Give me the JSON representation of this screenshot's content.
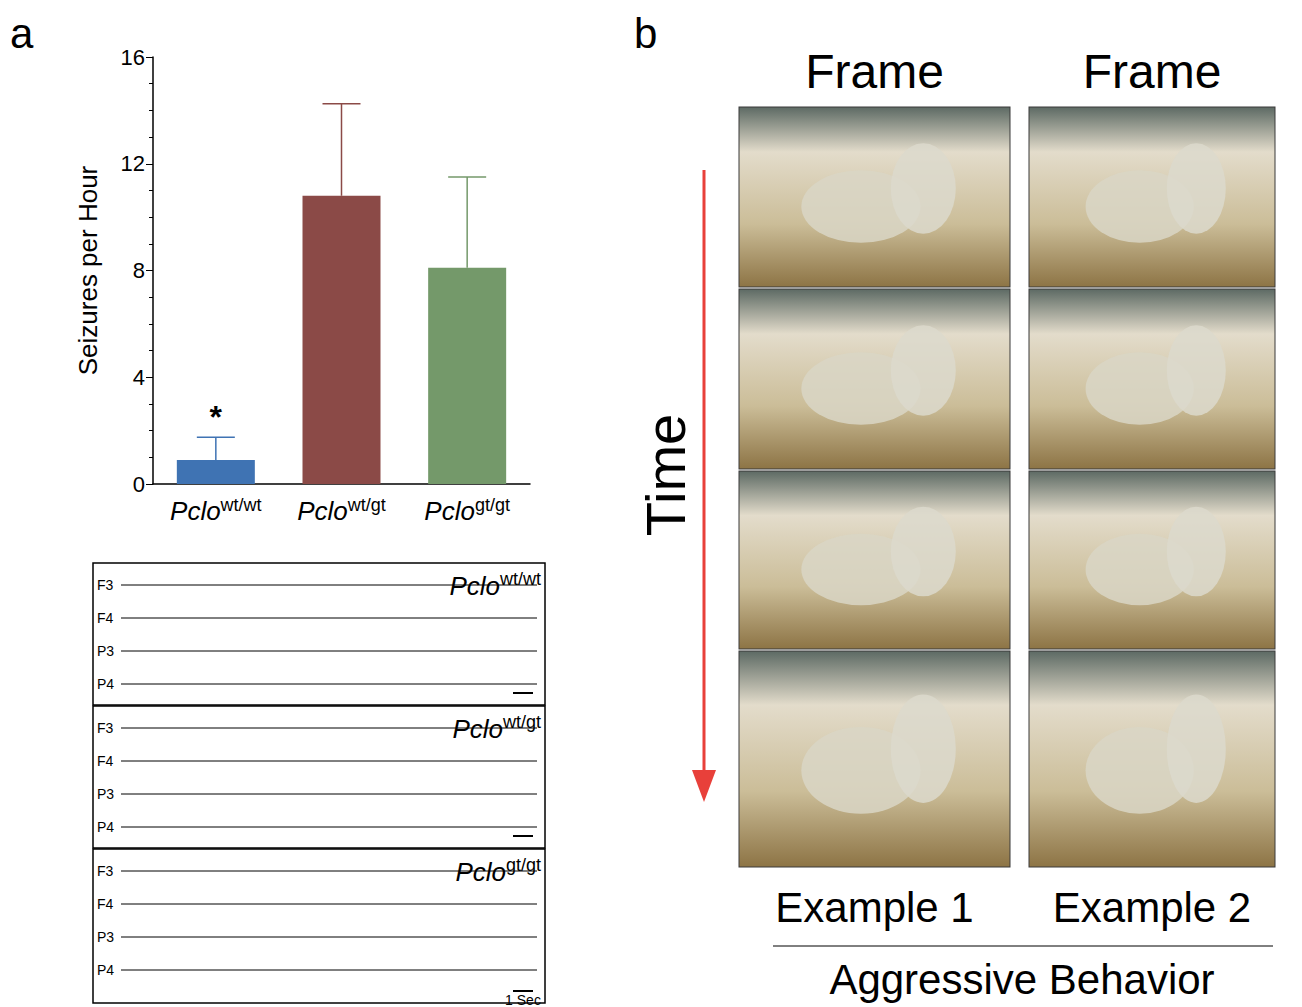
{
  "panel_letters": [
    "a",
    "b"
  ],
  "chart_data": {
    "type": "bar",
    "y_label": "Seizures per Hour",
    "categories": [
      "Pclowt/wt",
      "Pclowt/gt",
      "Pclogt/gt"
    ],
    "values": [
      0.9,
      10.8,
      8.1
    ],
    "errors": [
      0.85,
      3.45,
      3.4
    ],
    "colors": [
      "#3f73b3",
      "#8b4a47",
      "#74996a"
    ],
    "annotations": [
      {
        "category": "Pclowt/wt",
        "text": "*"
      }
    ],
    "ylim": [
      0,
      16
    ],
    "yticks": [
      0,
      4,
      8,
      12,
      16
    ],
    "grid": false
  },
  "eeg": {
    "channels": [
      "F3",
      "F4",
      "P3",
      "P4"
    ],
    "panels": [
      "Pclowt/wt",
      "Pclowt/gt",
      "Pclogt/gt"
    ],
    "scale_bar": "1 Sec"
  },
  "photos": {
    "column_title": "Frame",
    "time_label": "Time",
    "examples": [
      "Example 1",
      "Example 2"
    ],
    "frames_per_example": 4,
    "caption": "Aggressive Behavior"
  }
}
